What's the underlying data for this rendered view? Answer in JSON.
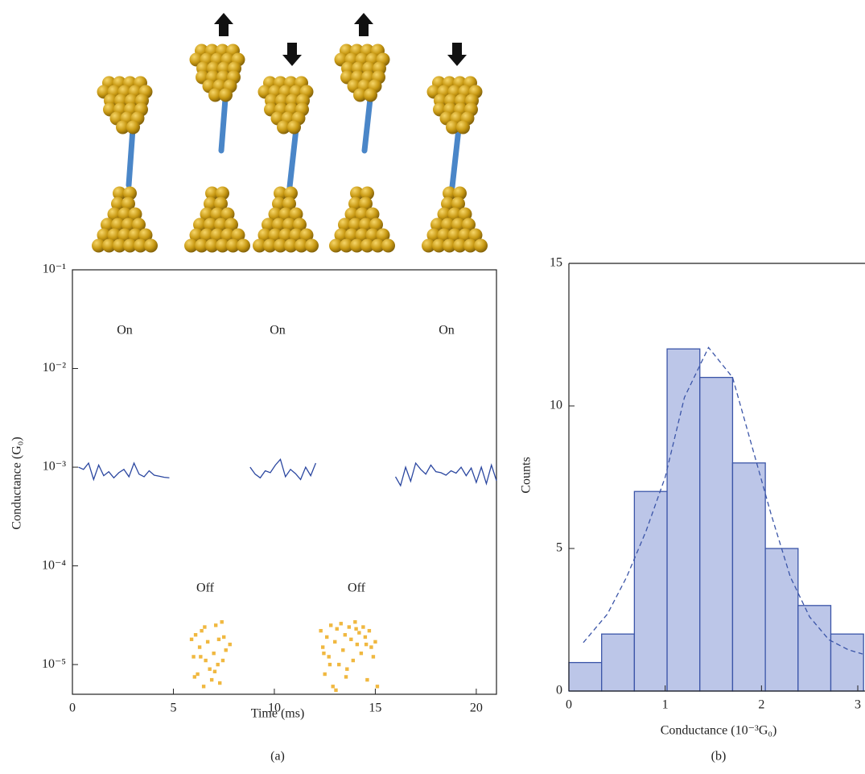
{
  "chart_data": [
    {
      "type": "line",
      "caption": "(a)",
      "x_label": "Time (ms)",
      "y_label": "Conductance (G₀)",
      "yscale": "log",
      "xlim": [
        0,
        21
      ],
      "xticks": [
        0,
        5,
        10,
        15,
        20
      ],
      "ylim": [
        5e-06,
        0.1
      ],
      "yticks": [
        {
          "value": 1e-05,
          "label": "10⁻⁵"
        },
        {
          "value": 0.0001,
          "label": "10⁻⁴"
        },
        {
          "value": 0.001,
          "label": "10⁻³"
        },
        {
          "value": 0.01,
          "label": "10⁻²"
        },
        {
          "value": 0.1,
          "label": "10⁻¹"
        }
      ],
      "annotations": [
        "On",
        "On",
        "On",
        "Off",
        "Off"
      ],
      "color": "#2b47a0",
      "x": [
        0.3,
        0.55,
        0.8,
        1.05,
        1.3,
        1.55,
        1.8,
        2.05,
        2.3,
        2.55,
        2.8,
        3.05,
        3.3,
        3.55,
        3.8,
        4.05,
        4.3,
        4.55,
        4.8,
        6.5,
        8.8,
        9.05,
        9.3,
        9.55,
        9.8,
        10.05,
        10.3,
        10.55,
        10.8,
        11.05,
        11.3,
        11.55,
        11.8,
        12.05,
        14,
        16,
        16.25,
        16.5,
        16.75,
        17,
        17.25,
        17.5,
        17.75,
        18,
        18.25,
        18.5,
        18.75,
        19,
        19.25,
        19.5,
        19.75,
        20,
        20.25,
        20.5,
        20.75,
        21
      ],
      "values": [
        0.001,
        0.00095,
        0.0011,
        0.00075,
        0.00105,
        0.00082,
        0.0009,
        0.00078,
        0.00088,
        0.00095,
        0.0008,
        0.0011,
        0.00085,
        0.0008,
        0.00092,
        0.00083,
        0.00081,
        0.00079,
        0.00078,
        null,
        0.001,
        0.00085,
        0.00078,
        0.00092,
        0.00088,
        0.00105,
        0.0012,
        0.0008,
        0.00095,
        0.00086,
        0.00075,
        0.001,
        0.00082,
        0.0011,
        null,
        0.0008,
        0.00065,
        0.001,
        0.00072,
        0.0011,
        0.00095,
        0.00085,
        0.00105,
        0.0009,
        0.00088,
        0.00083,
        0.00092,
        0.00087,
        0.001,
        0.00082,
        0.00098,
        0.0007,
        0.001,
        0.00068,
        0.00105,
        0.00073
      ],
      "scatter": {
        "color": "#f0b840",
        "x": [
          5.9,
          6.0,
          6.1,
          6.2,
          6.3,
          6.4,
          6.5,
          6.6,
          6.7,
          6.8,
          6.9,
          7.0,
          7.1,
          7.2,
          7.3,
          7.4,
          7.5,
          7.6,
          7.8,
          6.05,
          6.35,
          6.55,
          7.05,
          7.25,
          7.45,
          12.3,
          12.4,
          12.5,
          12.6,
          12.7,
          12.8,
          12.9,
          13.0,
          13.1,
          13.2,
          13.3,
          13.4,
          13.5,
          13.6,
          13.7,
          13.8,
          13.9,
          14.0,
          14.1,
          14.2,
          14.3,
          14.4,
          14.5,
          14.6,
          14.7,
          14.8,
          14.9,
          15.0,
          15.1,
          12.45,
          12.75,
          13.05,
          13.55,
          14.05,
          14.55
        ],
        "values": [
          1.8e-05,
          1.2e-05,
          2e-05,
          8e-06,
          1.5e-05,
          2.2e-05,
          6e-06,
          1.1e-05,
          1.7e-05,
          9e-06,
          7e-06,
          1.3e-05,
          2.5e-05,
          1e-05,
          6.5e-06,
          2.7e-05,
          1.9e-05,
          1.4e-05,
          1.6e-05,
          7.5e-06,
          1.2e-05,
          2.4e-05,
          8.5e-06,
          1.8e-05,
          1.1e-05,
          2.2e-05,
          1.5e-05,
          8e-06,
          1.9e-05,
          1.2e-05,
          2.5e-05,
          6e-06,
          1.7e-05,
          2.3e-05,
          1e-05,
          2.6e-05,
          1.4e-05,
          2e-05,
          9e-06,
          2.4e-05,
          1.8e-05,
          1.1e-05,
          2.7e-05,
          1.6e-05,
          2.1e-05,
          1.3e-05,
          2.4e-05,
          1.9e-05,
          7e-06,
          2.2e-05,
          1.5e-05,
          1.2e-05,
          1.7e-05,
          6e-06,
          1.3e-05,
          1e-05,
          5.5e-06,
          7.5e-06,
          2.3e-05,
          1.6e-05
        ]
      }
    },
    {
      "type": "histogram",
      "caption": "(b)",
      "x_label": "Conductance (10⁻³G₀)",
      "y_label": "Counts",
      "xlim": [
        0,
        3.05
      ],
      "xticks": [
        0,
        1,
        2,
        3
      ],
      "ylim": [
        0,
        15
      ],
      "yticks": [
        0,
        5,
        10,
        15
      ],
      "color": "#bcc6e8",
      "edge_color": "#3b55a8",
      "bins": [
        0,
        0.34,
        0.68,
        1.02,
        1.36,
        1.7,
        2.04,
        2.38,
        2.72,
        3.06
      ],
      "values": [
        1,
        2,
        7,
        12,
        11,
        8,
        5,
        3,
        2
      ],
      "fit": {
        "color": "#3b55a8",
        "x": [
          0.15,
          0.4,
          0.6,
          0.8,
          1.0,
          1.2,
          1.45,
          1.7,
          1.9,
          2.1,
          2.3,
          2.5,
          2.7,
          2.9,
          3.05
        ],
        "values": [
          1.7,
          2.7,
          4.0,
          5.6,
          7.5,
          10.3,
          12.05,
          11.0,
          8.6,
          6.2,
          4.0,
          2.6,
          1.8,
          1.45,
          1.3
        ]
      }
    }
  ]
}
